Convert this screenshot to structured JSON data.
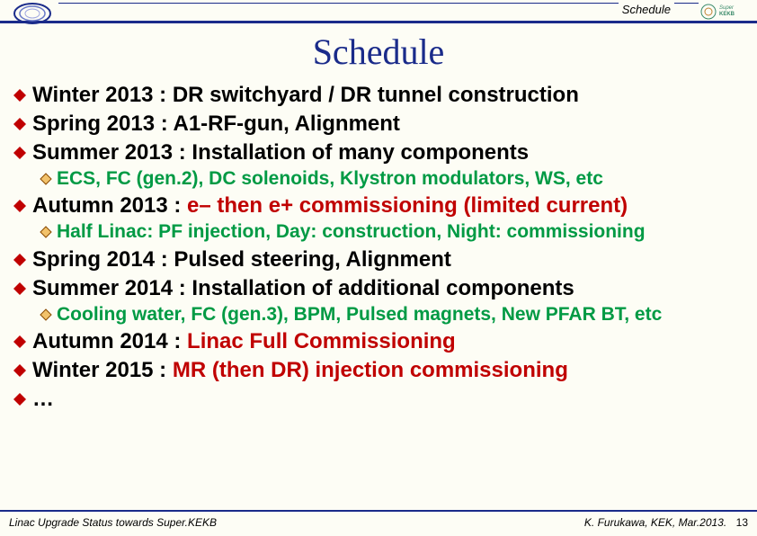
{
  "header": {
    "label": "Schedule",
    "title": "Schedule"
  },
  "items": [
    {
      "level": 1,
      "text": "Winter 2013 : DR switchyard / DR tunnel construction"
    },
    {
      "level": 1,
      "text": "Spring 2013 : A1-RF-gun, Alignment"
    },
    {
      "level": 1,
      "text": "Summer 2013 : Installation of many components"
    },
    {
      "level": 2,
      "text": "ECS, FC (gen.2), DC solenoids, Klystron modulators, WS, etc"
    },
    {
      "level": 1,
      "text": "Autumn 2013 : ",
      "hl": "e– then e+ commissioning (limited current)"
    },
    {
      "level": 2,
      "text": "Half Linac: PF injection, Day: construction, Night: commissioning"
    },
    {
      "level": 1,
      "text": "Spring 2014 : Pulsed steering, Alignment"
    },
    {
      "level": 1,
      "text": "Summer 2014 : Installation of additional components"
    },
    {
      "level": 2,
      "text": "Cooling water, FC (gen.3), BPM, Pulsed magnets, New PFAR BT, etc"
    },
    {
      "level": 1,
      "text": "Autumn 2014 : ",
      "hl": "Linac Full Commissioning"
    },
    {
      "level": 1,
      "text": "Winter 2015 : ",
      "hl": "MR (then DR) injection commissioning"
    },
    {
      "level": 1,
      "text": "…"
    }
  ],
  "footer": {
    "left": "Linac Upgrade Status towards Super.KEKB",
    "right": "K. Furukawa, KEK, Mar.2013.",
    "page": "13"
  },
  "colors": {
    "accent": "#1a2b8a",
    "bullet_l1": "#c00000",
    "bullet_l2_edge": "#8a4a00",
    "bullet_l2_fill": "#f2c26b",
    "l2_text": "#009a44",
    "highlight": "#c00000",
    "background": "#fdfdf5"
  }
}
